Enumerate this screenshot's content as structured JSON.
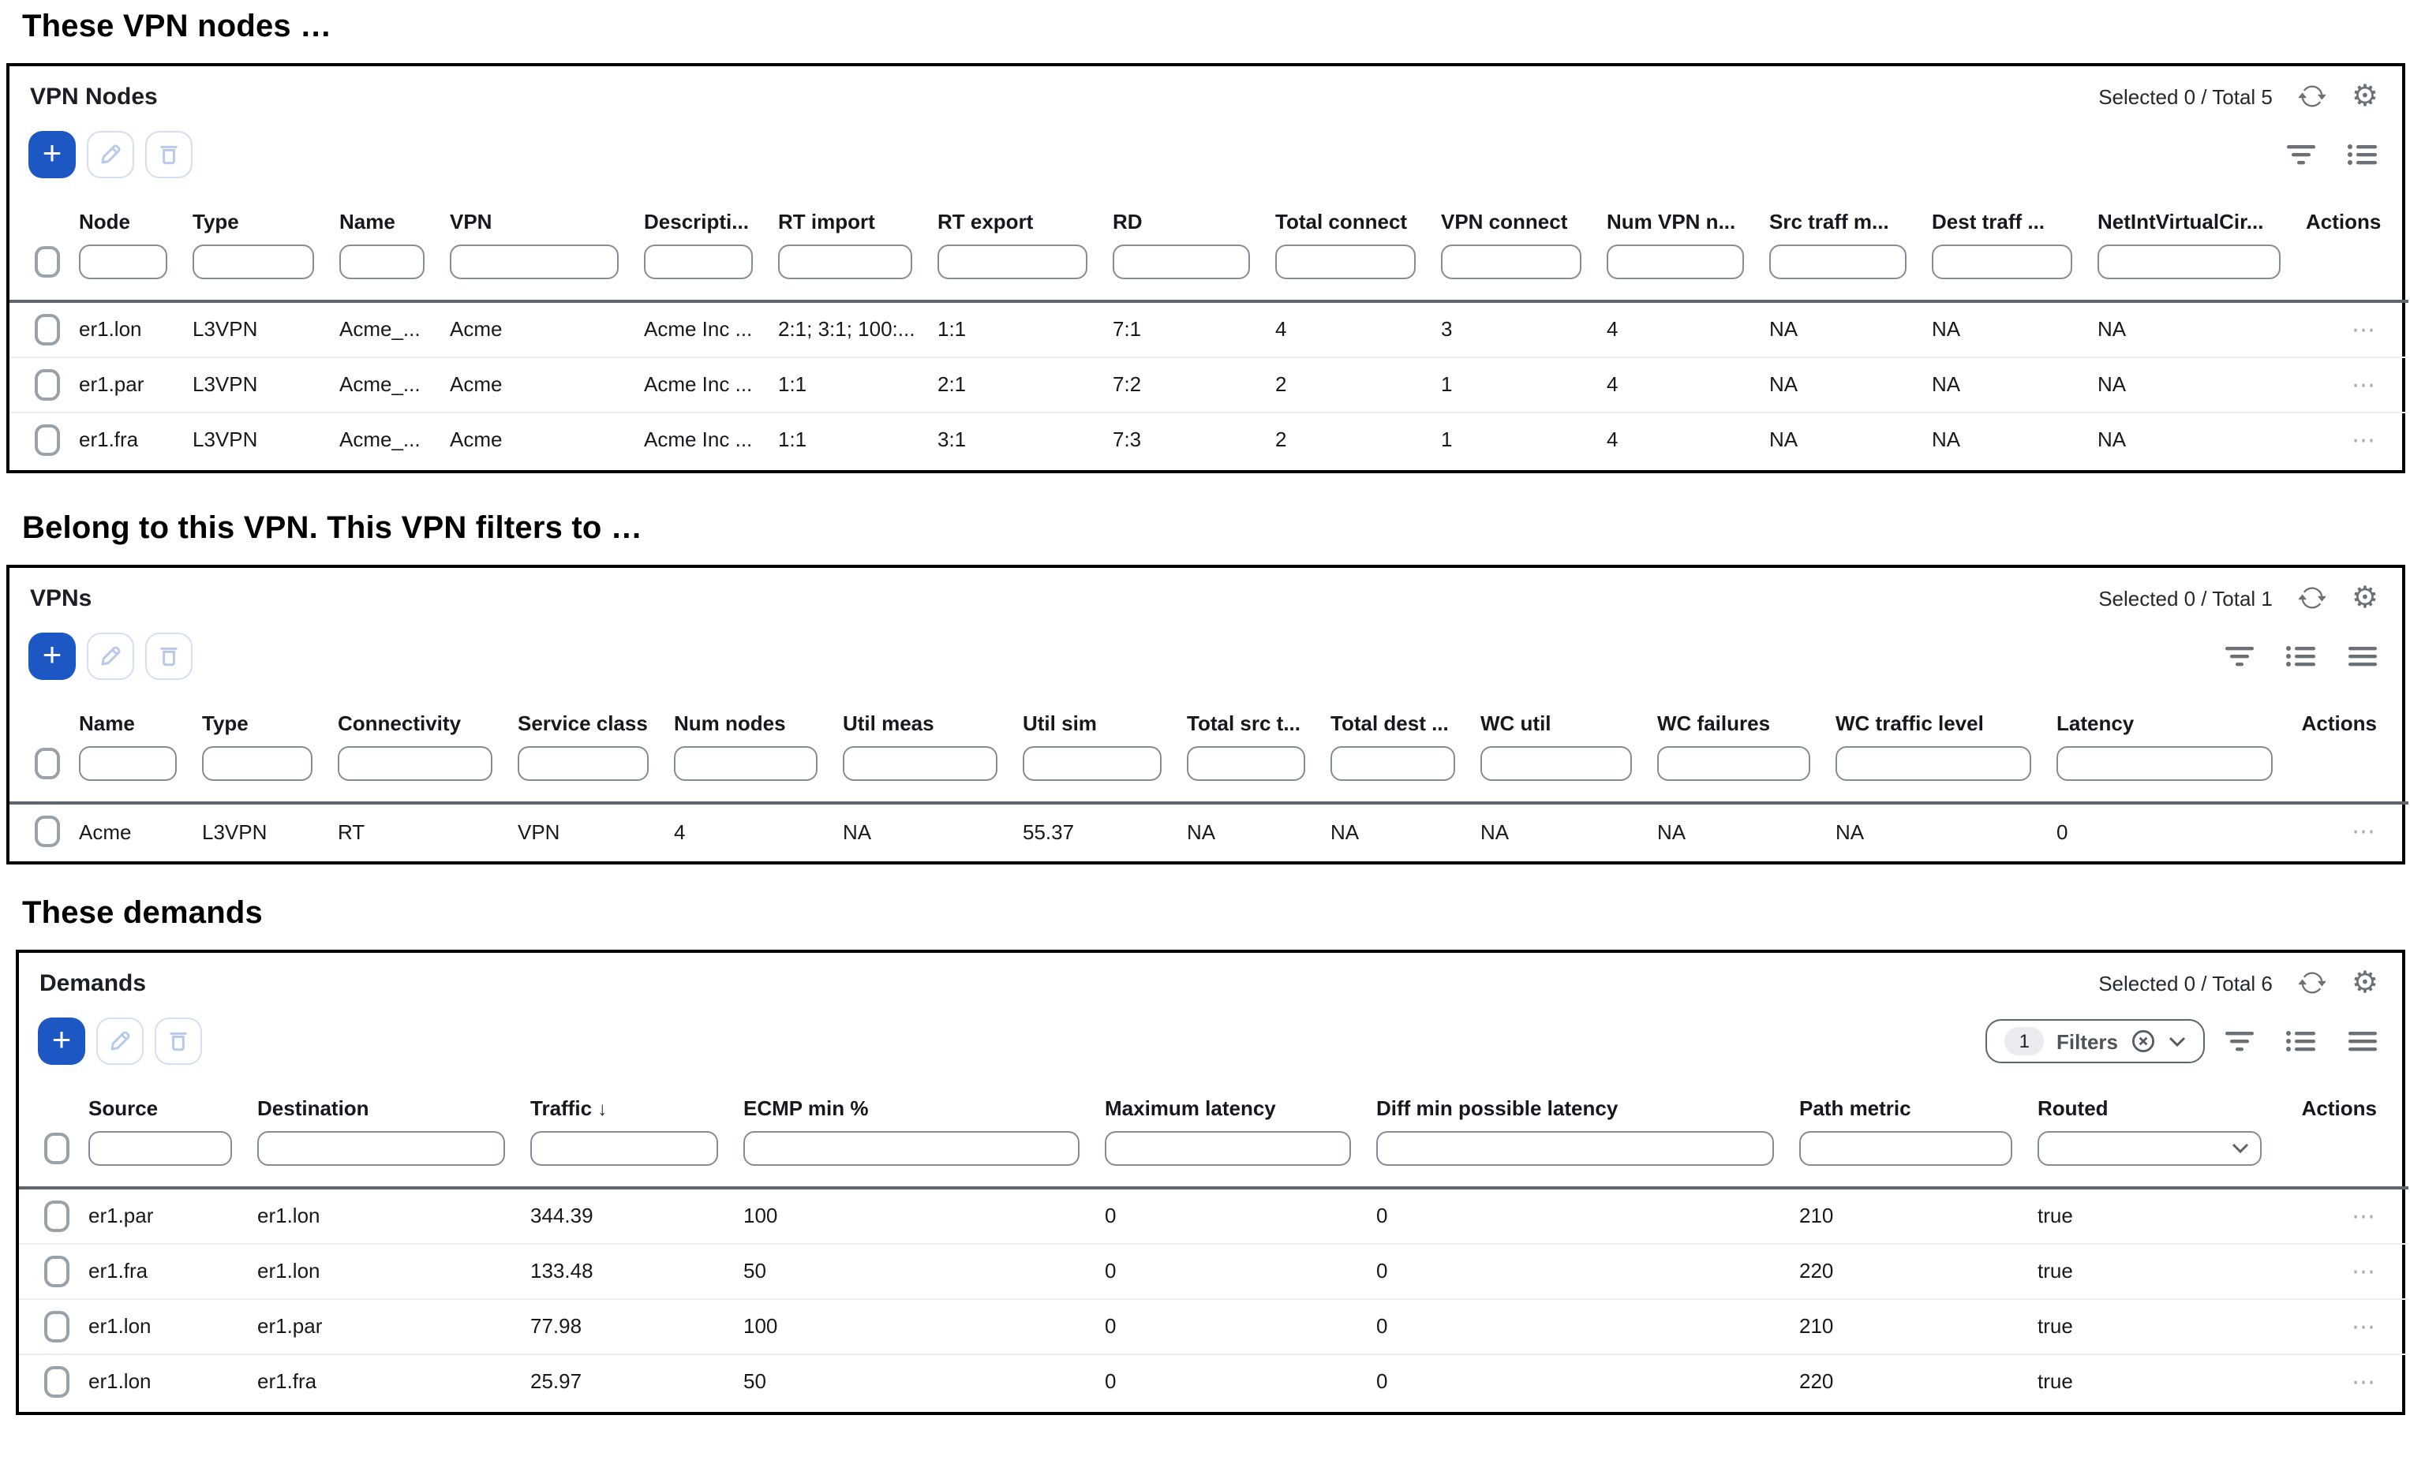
{
  "colors": {
    "accent_blue": "#1d57c4",
    "disabled_button_border": "#d4def5",
    "disabled_icon_blue": "#b9c9ee",
    "icon_gray": "#6a7075",
    "panel_border": "#000000",
    "header_separator": "#60666e",
    "row_separator": "#ebedf0"
  },
  "icon_names": [
    "plus-icon",
    "pencil-icon",
    "trash-icon",
    "refresh-icon",
    "settings-gear-icon",
    "filter-icon",
    "list-view-icon",
    "menu-view-icon",
    "circle-x-icon",
    "chevron-down-icon",
    "sort-descending-icon",
    "ellipsis-actions-icon",
    "checkbox"
  ],
  "sections": [
    {
      "heading": "These VPN nodes …",
      "panel": {
        "title": "VPN Nodes",
        "selected": "Selected 0 / Total 5",
        "add_label": "+",
        "columns": [
          {
            "label": "Node"
          },
          {
            "label": "Type"
          },
          {
            "label": "Name"
          },
          {
            "label": "VPN"
          },
          {
            "label": "Descripti..."
          },
          {
            "label": "RT import"
          },
          {
            "label": "RT export"
          },
          {
            "label": "RD"
          },
          {
            "label": "Total connect"
          },
          {
            "label": "VPN connect"
          },
          {
            "label": "Num VPN n..."
          },
          {
            "label": "Src traff m..."
          },
          {
            "label": "Dest traff ..."
          },
          {
            "label": "NetIntVirtualCir..."
          },
          {
            "label": "Actions",
            "filter": "none"
          }
        ],
        "rows": [
          [
            "er1.lon",
            "L3VPN",
            "Acme_...",
            "Acme",
            "Acme Inc ...",
            "2:1; 3:1; 100:...",
            "1:1",
            "7:1",
            "4",
            "3",
            "4",
            "NA",
            "NA",
            "NA"
          ],
          [
            "er1.par",
            "L3VPN",
            "Acme_...",
            "Acme",
            "Acme Inc ...",
            "1:1",
            "2:1",
            "7:2",
            "2",
            "1",
            "4",
            "NA",
            "NA",
            "NA"
          ],
          [
            "er1.fra",
            "L3VPN",
            "Acme_...",
            "Acme",
            "Acme Inc ...",
            "1:1",
            "3:1",
            "7:3",
            "2",
            "1",
            "4",
            "NA",
            "NA",
            "NA"
          ]
        ]
      }
    },
    {
      "heading": "Belong to this VPN. This VPN filters to …",
      "panel": {
        "title": "VPNs",
        "selected": "Selected 0 / Total 1",
        "add_label": "+",
        "columns": [
          {
            "label": "Name"
          },
          {
            "label": "Type"
          },
          {
            "label": "Connectivity"
          },
          {
            "label": "Service class"
          },
          {
            "label": "Num nodes"
          },
          {
            "label": "Util meas"
          },
          {
            "label": "Util sim"
          },
          {
            "label": "Total src t..."
          },
          {
            "label": "Total dest ..."
          },
          {
            "label": "WC util"
          },
          {
            "label": "WC failures"
          },
          {
            "label": "WC traffic level"
          },
          {
            "label": "Latency"
          },
          {
            "label": "Actions",
            "filter": "none"
          }
        ],
        "rows": [
          [
            "Acme",
            "L3VPN",
            "RT",
            "VPN",
            "4",
            "NA",
            "55.37",
            "NA",
            "NA",
            "NA",
            "NA",
            "NA",
            "0"
          ]
        ]
      }
    },
    {
      "heading": "These demands",
      "panel": {
        "title": "Demands",
        "selected": "Selected 0 / Total 6",
        "add_label": "+",
        "filters_chip": {
          "count": "1",
          "label": "Filters"
        },
        "columns": [
          {
            "label": "Source"
          },
          {
            "label": "Destination"
          },
          {
            "label": "Traffic",
            "sort": "desc"
          },
          {
            "label": "ECMP min %"
          },
          {
            "label": "Maximum latency"
          },
          {
            "label": "Diff min possible latency"
          },
          {
            "label": "Path metric"
          },
          {
            "label": "Routed",
            "filter": "select"
          },
          {
            "label": "Actions",
            "filter": "none"
          }
        ],
        "rows": [
          [
            "er1.par",
            "er1.lon",
            "344.39",
            "100",
            "0",
            "0",
            "210",
            "true"
          ],
          [
            "er1.fra",
            "er1.lon",
            "133.48",
            "50",
            "0",
            "0",
            "220",
            "true"
          ],
          [
            "er1.lon",
            "er1.par",
            "77.98",
            "100",
            "0",
            "0",
            "210",
            "true"
          ],
          [
            "er1.lon",
            "er1.fra",
            "25.97",
            "50",
            "0",
            "0",
            "220",
            "true"
          ]
        ]
      }
    }
  ]
}
